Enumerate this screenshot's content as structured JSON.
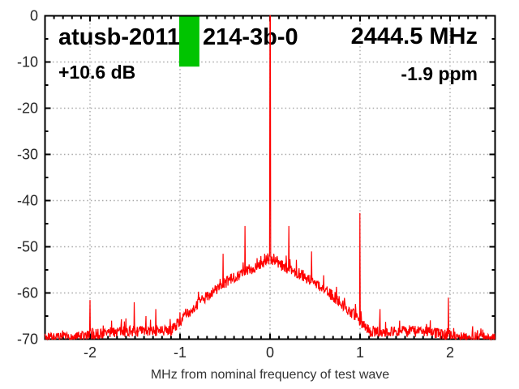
{
  "header": {
    "title_prefix": "atusb-2011",
    "title_suffix": "214-3b-0",
    "frequency": "2444.5 MHz",
    "gain": "+10.6 dB",
    "offset": "-1.9 ppm"
  },
  "colors": {
    "trace": "#ff0000",
    "marker": "#00c400",
    "grid": "#a8a8a8",
    "axis": "#000000"
  },
  "chart_data": {
    "type": "line",
    "series_name": "spectrum",
    "xlabel": "MHz from nominal frequency of test wave",
    "ylabel": "",
    "xlim": [
      -2.5,
      2.5
    ],
    "ylim": [
      -70,
      0
    ],
    "x_ticks": [
      -2,
      -1,
      0,
      1,
      2
    ],
    "x_tick_labels": [
      "-2",
      "-1",
      "0",
      "1",
      "2"
    ],
    "y_ticks": [
      0,
      -10,
      -20,
      -30,
      -40,
      -50,
      -60,
      -70
    ],
    "y_tick_labels": [
      "0",
      "-10",
      "-20",
      "-30",
      "-40",
      "-50",
      "-60",
      "-70"
    ],
    "x_minor_step": 0.1,
    "y_minor_step": 5,
    "grid": true,
    "noise_seed": 7,
    "noise_amplitude_db": 1.2,
    "noise_floor_db": -68.3,
    "edge_floor_db": -69.8,
    "edge_floor_start_mhz": 1.7,
    "hump": {
      "center_db": -53.8,
      "coeff": 12.3,
      "exponent": 1.6,
      "near_carrier_boost": 1.2,
      "near_carrier_width": 0.09
    },
    "spikes": [
      {
        "x": -2.26,
        "db": -68.8
      },
      {
        "x": -2.0,
        "db": -61.5
      },
      {
        "x": -1.76,
        "db": -66.0
      },
      {
        "x": -1.6,
        "db": -65.5
      },
      {
        "x": -1.51,
        "db": -62.0
      },
      {
        "x": -1.38,
        "db": -65.0
      },
      {
        "x": -1.27,
        "db": -63.5
      },
      {
        "x": -0.95,
        "db": -64.5
      },
      {
        "x": -0.79,
        "db": -61.5
      },
      {
        "x": -0.52,
        "db": -51.5
      },
      {
        "x": -0.28,
        "db": -45.5
      },
      {
        "x": -0.1,
        "db": -52.0
      },
      {
        "x": -0.06,
        "db": -51.5
      },
      {
        "x": 0.0,
        "db": 0.0
      },
      {
        "x": 0.04,
        "db": -51.5
      },
      {
        "x": 0.08,
        "db": -52.0
      },
      {
        "x": 0.21,
        "db": -45.5
      },
      {
        "x": 0.46,
        "db": -51.0
      },
      {
        "x": 0.7,
        "db": -61.0
      },
      {
        "x": 1.0,
        "db": -42.7
      },
      {
        "x": 1.22,
        "db": -63.5
      },
      {
        "x": 1.44,
        "db": -66.0
      },
      {
        "x": 1.55,
        "db": -67.0
      },
      {
        "x": 1.98,
        "db": -61.0
      },
      {
        "x": 2.25,
        "db": -67.2
      }
    ],
    "marker_box": {
      "x0": -1.01,
      "x1": -0.785,
      "db_top": 0,
      "db_bottom": -11
    }
  }
}
